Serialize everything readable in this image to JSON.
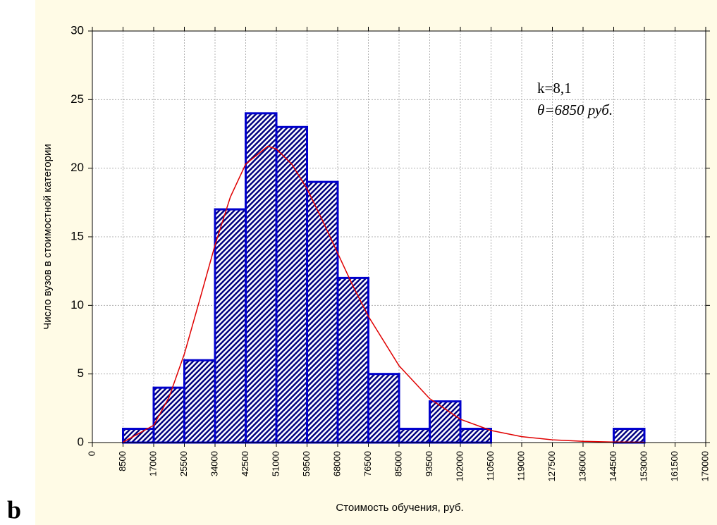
{
  "panel_label": "b",
  "chart_data": {
    "type": "histogram",
    "xlabel": "Стоимость обучения, руб.",
    "ylabel": "Число вузов в стоимостной категории",
    "annotations": [
      "k=8,1",
      "θ=6850 руб."
    ],
    "bins": [
      8500,
      17000,
      25500,
      34000,
      42500,
      51000,
      59500,
      68000,
      76500,
      85000,
      93500,
      102000,
      110500,
      119000,
      127500,
      136000,
      144500,
      153000
    ],
    "counts": [
      1,
      4,
      6,
      17,
      24,
      23,
      19,
      12,
      5,
      1,
      3,
      1,
      0,
      0,
      0,
      0,
      1
    ],
    "color": "#0000cc",
    "curve": {
      "color": "#e00000",
      "x": [
        8500,
        17000,
        21250,
        25500,
        29750,
        34000,
        38250,
        42500,
        48635,
        51000,
        55250,
        59500,
        63750,
        68000,
        72250,
        76500,
        85000,
        93500,
        102000,
        110500,
        119000,
        127500,
        136000,
        144500,
        153000
      ],
      "values": [
        0.03,
        1.26,
        3.3,
        6.46,
        10.4,
        14.4,
        17.9,
        20.3,
        21.6,
        21.4,
        20.3,
        18.5,
        16.2,
        13.8,
        11.4,
        9.2,
        5.6,
        3.2,
        1.7,
        0.88,
        0.43,
        0.2,
        0.09,
        0.04,
        0.02
      ]
    },
    "xlim": [
      0,
      170000
    ],
    "xticks": [
      0,
      8500,
      17000,
      25500,
      34000,
      42500,
      51000,
      59500,
      68000,
      76500,
      85000,
      93500,
      102000,
      110500,
      119000,
      127500,
      136000,
      144500,
      153000,
      161500,
      170000
    ],
    "ylim": [
      0,
      30
    ],
    "yticks": [
      0,
      5,
      10,
      15,
      20,
      25,
      30
    ],
    "grid": true
  }
}
